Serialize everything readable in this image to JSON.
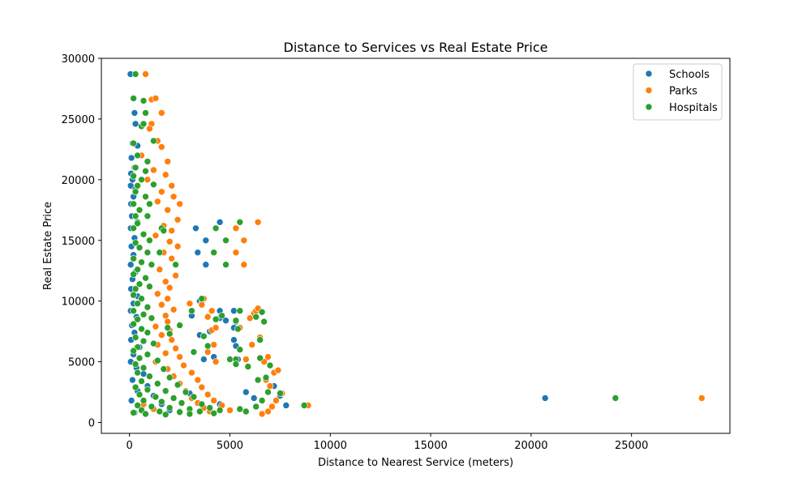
{
  "chart_data": {
    "type": "scatter",
    "title": "Distance to Services vs Real Estate Price",
    "xlabel": "Distance to Nearest Service (meters)",
    "ylabel": "Real Estate Price",
    "xlim": [
      -1400,
      29900
    ],
    "ylim": [
      -900,
      30000
    ],
    "xticks": [
      0,
      5000,
      10000,
      15000,
      20000,
      25000
    ],
    "yticks": [
      0,
      5000,
      10000,
      15000,
      20000,
      25000,
      30000
    ],
    "grid": false,
    "legend_position": "top-right",
    "series": [
      {
        "name": "Schools",
        "color": "#1f77b4",
        "points": [
          [
            50,
            28700
          ],
          [
            250,
            25500
          ],
          [
            300,
            24600
          ],
          [
            600,
            24400
          ],
          [
            150,
            23000
          ],
          [
            400,
            22800
          ],
          [
            100,
            21800
          ],
          [
            250,
            21000
          ],
          [
            80,
            20500
          ],
          [
            150,
            20000
          ],
          [
            60,
            19500
          ],
          [
            300,
            19200
          ],
          [
            200,
            18600
          ],
          [
            80,
            18000
          ],
          [
            120,
            17000
          ],
          [
            400,
            16500
          ],
          [
            60,
            16000
          ],
          [
            250,
            15200
          ],
          [
            100,
            14500
          ],
          [
            200,
            13800
          ],
          [
            60,
            13000
          ],
          [
            300,
            12400
          ],
          [
            150,
            11800
          ],
          [
            80,
            11000
          ],
          [
            400,
            10400
          ],
          [
            200,
            9800
          ],
          [
            60,
            9200
          ],
          [
            350,
            8700
          ],
          [
            120,
            8000
          ],
          [
            250,
            7400
          ],
          [
            80,
            6800
          ],
          [
            500,
            6200
          ],
          [
            200,
            5600
          ],
          [
            60,
            5000
          ],
          [
            350,
            4500
          ],
          [
            700,
            4000
          ],
          [
            150,
            3500
          ],
          [
            900,
            3000
          ],
          [
            400,
            2600
          ],
          [
            1200,
            2200
          ],
          [
            100,
            1800
          ],
          [
            1600,
            1500
          ],
          [
            600,
            1200
          ],
          [
            2000,
            1000
          ],
          [
            250,
            800
          ],
          [
            2500,
            900
          ],
          [
            3300,
            16000
          ],
          [
            3800,
            15000
          ],
          [
            3800,
            13000
          ],
          [
            3400,
            14000
          ],
          [
            4500,
            16500
          ],
          [
            3500,
            10000
          ],
          [
            3600,
            9800
          ],
          [
            3100,
            8800
          ],
          [
            3500,
            7200
          ],
          [
            4000,
            7500
          ],
          [
            4500,
            9200
          ],
          [
            4500,
            8600
          ],
          [
            4800,
            8400
          ],
          [
            5200,
            9200
          ],
          [
            5300,
            8300
          ],
          [
            5200,
            6800
          ],
          [
            5300,
            6300
          ],
          [
            5400,
            5200
          ],
          [
            5200,
            7800
          ],
          [
            4200,
            5400
          ],
          [
            3700,
            5200
          ],
          [
            6500,
            6800
          ],
          [
            6700,
            5000
          ],
          [
            7200,
            3000
          ],
          [
            7500,
            2200
          ],
          [
            7800,
            1400
          ],
          [
            5800,
            2500
          ],
          [
            6200,
            2000
          ],
          [
            4500,
            1500
          ],
          [
            3000,
            2400
          ],
          [
            20700,
            2000
          ]
        ]
      },
      {
        "name": "Parks",
        "color": "#ff7f0e",
        "points": [
          [
            800,
            28700
          ],
          [
            1100,
            26600
          ],
          [
            1300,
            26700
          ],
          [
            1600,
            25500
          ],
          [
            1100,
            24600
          ],
          [
            1000,
            24200
          ],
          [
            1400,
            23200
          ],
          [
            1600,
            22700
          ],
          [
            600,
            22000
          ],
          [
            1900,
            21500
          ],
          [
            1200,
            20800
          ],
          [
            1800,
            20400
          ],
          [
            900,
            20000
          ],
          [
            2100,
            19500
          ],
          [
            1600,
            19000
          ],
          [
            2200,
            18600
          ],
          [
            1400,
            18200
          ],
          [
            2500,
            18000
          ],
          [
            1900,
            17500
          ],
          [
            2400,
            16700
          ],
          [
            1700,
            16200
          ],
          [
            2100,
            15800
          ],
          [
            1300,
            15400
          ],
          [
            2000,
            14900
          ],
          [
            2400,
            14500
          ],
          [
            1700,
            14000
          ],
          [
            2100,
            13500
          ],
          [
            2300,
            13000
          ],
          [
            1500,
            12600
          ],
          [
            2300,
            12100
          ],
          [
            1800,
            11600
          ],
          [
            2000,
            11100
          ],
          [
            1400,
            10600
          ],
          [
            1900,
            10200
          ],
          [
            1600,
            9700
          ],
          [
            2200,
            9300
          ],
          [
            1800,
            8800
          ],
          [
            1900,
            8300
          ],
          [
            1300,
            7900
          ],
          [
            2000,
            7600
          ],
          [
            1600,
            7200
          ],
          [
            2100,
            6800
          ],
          [
            1400,
            6400
          ],
          [
            2300,
            6100
          ],
          [
            1800,
            5700
          ],
          [
            2500,
            5400
          ],
          [
            1300,
            5000
          ],
          [
            2700,
            4700
          ],
          [
            1900,
            4400
          ],
          [
            3100,
            4100
          ],
          [
            2200,
            3800
          ],
          [
            3400,
            3500
          ],
          [
            2500,
            3200
          ],
          [
            3600,
            2900
          ],
          [
            2800,
            2600
          ],
          [
            3900,
            2300
          ],
          [
            3100,
            2000
          ],
          [
            4200,
            1800
          ],
          [
            3400,
            1600
          ],
          [
            4600,
            1400
          ],
          [
            3700,
            1200
          ],
          [
            5000,
            1000
          ],
          [
            4000,
            900
          ],
          [
            1200,
            1100
          ],
          [
            700,
            1500
          ],
          [
            3000,
            9800
          ],
          [
            3700,
            10200
          ],
          [
            3600,
            9700
          ],
          [
            4100,
            9200
          ],
          [
            3900,
            8700
          ],
          [
            4100,
            7600
          ],
          [
            4300,
            7800
          ],
          [
            3900,
            5800
          ],
          [
            4200,
            6400
          ],
          [
            4300,
            5000
          ],
          [
            5300,
            16000
          ],
          [
            5300,
            14000
          ],
          [
            5700,
            15000
          ],
          [
            5700,
            13000
          ],
          [
            6400,
            16500
          ],
          [
            5500,
            7800
          ],
          [
            5800,
            5200
          ],
          [
            6000,
            8600
          ],
          [
            6200,
            9000
          ],
          [
            6300,
            9200
          ],
          [
            6400,
            9400
          ],
          [
            6500,
            7000
          ],
          [
            6100,
            6400
          ],
          [
            6700,
            5000
          ],
          [
            6900,
            5400
          ],
          [
            6800,
            3500
          ],
          [
            7200,
            4100
          ],
          [
            7000,
            3000
          ],
          [
            7400,
            4300
          ],
          [
            7600,
            2400
          ],
          [
            7300,
            1800
          ],
          [
            7100,
            1300
          ],
          [
            6900,
            900
          ],
          [
            6600,
            700
          ],
          [
            8900,
            1400
          ],
          [
            28500,
            2000
          ]
        ]
      },
      {
        "name": "Hospitals",
        "color": "#2ca02c",
        "points": [
          [
            300,
            28700
          ],
          [
            200,
            26700
          ],
          [
            700,
            26500
          ],
          [
            800,
            25500
          ],
          [
            600,
            24400
          ],
          [
            700,
            24600
          ],
          [
            1200,
            23200
          ],
          [
            200,
            23000
          ],
          [
            400,
            22000
          ],
          [
            900,
            21500
          ],
          [
            300,
            21000
          ],
          [
            800,
            20700
          ],
          [
            200,
            20300
          ],
          [
            600,
            20000
          ],
          [
            400,
            19500
          ],
          [
            1200,
            19600
          ],
          [
            300,
            19000
          ],
          [
            800,
            18600
          ],
          [
            200,
            18000
          ],
          [
            1000,
            18000
          ],
          [
            500,
            17500
          ],
          [
            300,
            17000
          ],
          [
            900,
            17000
          ],
          [
            400,
            16400
          ],
          [
            200,
            16000
          ],
          [
            700,
            15500
          ],
          [
            1000,
            15000
          ],
          [
            300,
            14800
          ],
          [
            500,
            14400
          ],
          [
            900,
            14000
          ],
          [
            200,
            13500
          ],
          [
            600,
            13200
          ],
          [
            1100,
            13000
          ],
          [
            400,
            12600
          ],
          [
            200,
            12200
          ],
          [
            800,
            11900
          ],
          [
            500,
            11400
          ],
          [
            300,
            11000
          ],
          [
            1000,
            11200
          ],
          [
            200,
            10500
          ],
          [
            600,
            10200
          ],
          [
            400,
            9800
          ],
          [
            900,
            9500
          ],
          [
            200,
            9200
          ],
          [
            700,
            8900
          ],
          [
            400,
            8500
          ],
          [
            1100,
            8600
          ],
          [
            200,
            8100
          ],
          [
            600,
            7700
          ],
          [
            900,
            7400
          ],
          [
            300,
            7000
          ],
          [
            700,
            6700
          ],
          [
            1200,
            6500
          ],
          [
            400,
            6200
          ],
          [
            200,
            5900
          ],
          [
            900,
            5600
          ],
          [
            500,
            5300
          ],
          [
            1400,
            5100
          ],
          [
            300,
            4800
          ],
          [
            700,
            4500
          ],
          [
            1700,
            4400
          ],
          [
            400,
            4100
          ],
          [
            1000,
            3800
          ],
          [
            2000,
            3700
          ],
          [
            600,
            3400
          ],
          [
            1400,
            3200
          ],
          [
            2400,
            3100
          ],
          [
            300,
            2900
          ],
          [
            900,
            2700
          ],
          [
            1800,
            2600
          ],
          [
            2800,
            2500
          ],
          [
            500,
            2300
          ],
          [
            1300,
            2100
          ],
          [
            2200,
            2000
          ],
          [
            3200,
            2100
          ],
          [
            700,
            1800
          ],
          [
            1600,
            1700
          ],
          [
            2600,
            1600
          ],
          [
            3600,
            1500
          ],
          [
            400,
            1400
          ],
          [
            1100,
            1300
          ],
          [
            2000,
            1200
          ],
          [
            3000,
            1100
          ],
          [
            4000,
            1200
          ],
          [
            600,
            1000
          ],
          [
            1500,
            900
          ],
          [
            2500,
            850
          ],
          [
            3500,
            900
          ],
          [
            4500,
            1000
          ],
          [
            5500,
            1100
          ],
          [
            200,
            800
          ],
          [
            800,
            700
          ],
          [
            1800,
            650
          ],
          [
            3000,
            700
          ],
          [
            4200,
            750
          ],
          [
            5800,
            900
          ],
          [
            1600,
            16000
          ],
          [
            1700,
            15800
          ],
          [
            1500,
            14000
          ],
          [
            2300,
            13000
          ],
          [
            2000,
            7300
          ],
          [
            1900,
            7800
          ],
          [
            2500,
            8000
          ],
          [
            3100,
            9200
          ],
          [
            3600,
            10200
          ],
          [
            3900,
            6300
          ],
          [
            3700,
            7100
          ],
          [
            3200,
            5800
          ],
          [
            4300,
            8500
          ],
          [
            4600,
            8800
          ],
          [
            4200,
            14000
          ],
          [
            4800,
            15000
          ],
          [
            4800,
            13000
          ],
          [
            4300,
            16000
          ],
          [
            5500,
            16500
          ],
          [
            5500,
            9200
          ],
          [
            5300,
            8400
          ],
          [
            5400,
            7700
          ],
          [
            5000,
            5200
          ],
          [
            5300,
            5200
          ],
          [
            5500,
            6000
          ],
          [
            5300,
            4800
          ],
          [
            5900,
            4600
          ],
          [
            6300,
            8700
          ],
          [
            6500,
            5300
          ],
          [
            6500,
            6800
          ],
          [
            6600,
            9100
          ],
          [
            6700,
            8300
          ],
          [
            6400,
            3500
          ],
          [
            6800,
            3700
          ],
          [
            7000,
            4700
          ],
          [
            6900,
            2500
          ],
          [
            6600,
            1800
          ],
          [
            6300,
            1300
          ],
          [
            7500,
            2400
          ],
          [
            8700,
            1400
          ],
          [
            24200,
            2000
          ]
        ]
      }
    ]
  }
}
